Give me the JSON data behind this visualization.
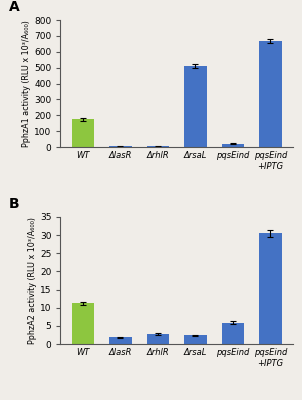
{
  "panel_A": {
    "title": "A",
    "ylabel": "PphzA1 activity (RLU x 10³/A₆₀₀)",
    "categories": [
      "WT",
      "ΔlasR",
      "ΔrhlR",
      "ΔrsaL",
      "pqsEind",
      "pqsEind\n+IPTG"
    ],
    "values": [
      175,
      5,
      5,
      512,
      22,
      668
    ],
    "errors": [
      8,
      2,
      2,
      12,
      3,
      15
    ],
    "colors": [
      "#8dc63f",
      "#4472c4",
      "#4472c4",
      "#4472c4",
      "#4472c4",
      "#4472c4"
    ],
    "ylim": [
      0,
      800
    ],
    "yticks": [
      0,
      100,
      200,
      300,
      400,
      500,
      600,
      700,
      800
    ]
  },
  "panel_B": {
    "title": "B",
    "ylabel": "PphzA2 activity (RLU x 10³/A₆₀₀)",
    "categories": [
      "WT",
      "ΔlasR",
      "ΔrhlR",
      "ΔrsaL",
      "pqsEind",
      "pqsEind\n+IPTG"
    ],
    "values": [
      11.2,
      1.8,
      2.7,
      2.4,
      5.9,
      30.5
    ],
    "errors": [
      0.4,
      0.2,
      0.2,
      0.2,
      0.3,
      0.9
    ],
    "colors": [
      "#8dc63f",
      "#4472c4",
      "#4472c4",
      "#4472c4",
      "#4472c4",
      "#4472c4"
    ],
    "ylim": [
      0,
      35
    ],
    "yticks": [
      0,
      5,
      10,
      15,
      20,
      25,
      30,
      35
    ]
  },
  "bar_width": 0.6,
  "background_color": "#f0ede8",
  "fig_background": "#f0ede8"
}
